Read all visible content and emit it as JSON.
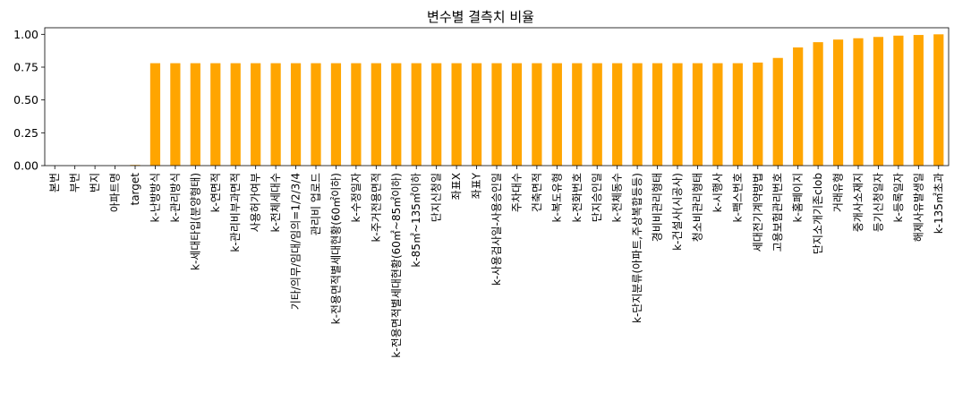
{
  "chart_data": {
    "type": "bar",
    "title": "변수별 결측치 비율",
    "xlabel": "",
    "ylabel": "",
    "ylim": [
      0,
      1.05
    ],
    "yticks": [
      "0.00",
      "0.25",
      "0.50",
      "0.75",
      "1.00"
    ],
    "ytick_values": [
      0,
      0.25,
      0.5,
      0.75,
      1.0
    ],
    "bar_color": "#FFA500",
    "grid": false,
    "legend": "none",
    "categories": [
      "본번",
      "부번",
      "번지",
      "아파트명",
      "target",
      "k-난방방식",
      "k-관리방식",
      "k-세대타입(분양형태)",
      "k-연면적",
      "k-관리비부과면적",
      "사용허가여부",
      "k-전체세대수",
      "기타/의무/임대/임의=1/2/3/4",
      "관리비 업로드",
      "k-전용면적별세대현황(60㎡이하)",
      "k-수정일자",
      "k-주거전용면적",
      "k-전용면적별세대현황(60㎡~85㎡이하)",
      "k-85㎡~135㎡이하",
      "단지신청일",
      "좌표X",
      "좌표Y",
      "k-사용검사일-사용승인일",
      "주차대수",
      "건축면적",
      "k-복도유형",
      "k-전화번호",
      "단지승인일",
      "k-전체동수",
      "k-단지분류(아파트,주상복합등등)",
      "경비비관리형태",
      "k-건설사(시공사)",
      "청소비관리형태",
      "k-시행사",
      "k-팩스번호",
      "세대전기계약방법",
      "고용보험관리번호",
      "k-홈페이지",
      "단지소개기존clob",
      "거래유형",
      "중개사소재지",
      "등기신청일자",
      "k-등록일자",
      "해제사유발생일",
      "k-135㎡초과"
    ],
    "values": [
      0.0,
      0.0,
      0.0,
      0.0,
      0.005,
      0.78,
      0.78,
      0.78,
      0.78,
      0.78,
      0.78,
      0.78,
      0.78,
      0.78,
      0.78,
      0.78,
      0.78,
      0.78,
      0.78,
      0.78,
      0.78,
      0.78,
      0.78,
      0.78,
      0.78,
      0.78,
      0.78,
      0.78,
      0.78,
      0.78,
      0.78,
      0.78,
      0.78,
      0.78,
      0.78,
      0.785,
      0.82,
      0.9,
      0.94,
      0.96,
      0.97,
      0.98,
      0.99,
      0.995,
      1.0
    ]
  }
}
